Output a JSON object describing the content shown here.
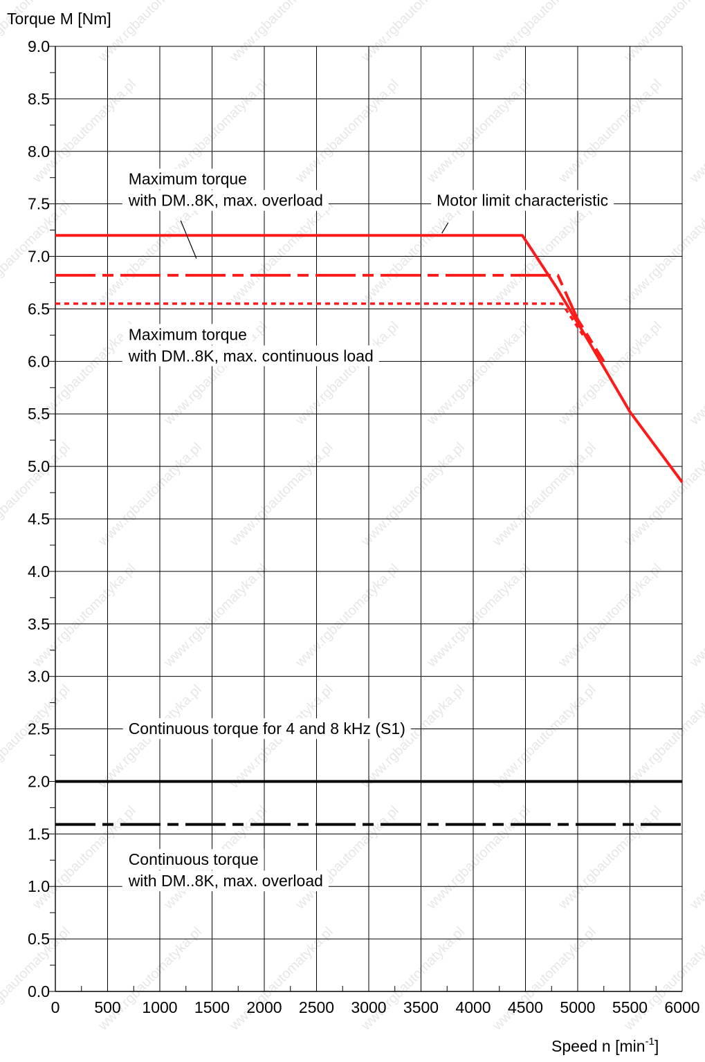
{
  "chart_data": {
    "type": "line",
    "ylabel": "Torque M [Nm]",
    "xlabel": "Speed n [min",
    "xlabel_superscript": "-1",
    "xlabel_suffix": "]",
    "xlim": [
      0,
      6000
    ],
    "ylim": [
      0,
      9.0
    ],
    "x_ticks": [
      "0",
      "500",
      "1000",
      "1500",
      "2000",
      "2500",
      "3000",
      "3500",
      "4000",
      "4500",
      "5000",
      "5500",
      "6000"
    ],
    "y_ticks": [
      "0.0",
      "0.5",
      "1.0",
      "1.5",
      "2.0",
      "2.5",
      "3.0",
      "3.5",
      "4.0",
      "4.5",
      "5.0",
      "5.5",
      "6.0",
      "6.5",
      "7.0",
      "7.5",
      "8.0",
      "8.5",
      "9.0"
    ],
    "grid": true,
    "colors": {
      "red": "#ff1a1a",
      "black": "#000000"
    },
    "series": [
      {
        "name": "Motor limit characteristic",
        "color": "#ff1a1a",
        "style": "solid",
        "x": [
          0,
          4470,
          4800,
          5100,
          5500,
          6000
        ],
        "y": [
          7.2,
          7.2,
          6.7,
          6.2,
          5.52,
          4.85
        ]
      },
      {
        "name": "Maximum torque with DM..8K, max. overload",
        "color": "#ff1a1a",
        "style": "dashdot",
        "x": [
          0,
          4810,
          5000,
          5250
        ],
        "y": [
          6.82,
          6.82,
          6.4,
          6.0
        ]
      },
      {
        "name": "Maximum torque with DM..8K, max. continuous load",
        "color": "#ff1a1a",
        "style": "dotted",
        "x": [
          0,
          4850,
          5050
        ],
        "y": [
          6.55,
          6.55,
          6.25
        ]
      },
      {
        "name": "Continuous torque for 4 and 8 kHz (S1)",
        "color": "#000000",
        "style": "solid",
        "x": [
          0,
          6000
        ],
        "y": [
          2.0,
          2.0
        ]
      },
      {
        "name": "Continuous torque with DM..8K, max. overload",
        "color": "#000000",
        "style": "dashdot",
        "x": [
          0,
          6000
        ],
        "y": [
          1.59,
          1.59
        ]
      }
    ],
    "annotations": [
      {
        "id": "max-overload",
        "lines": [
          "Maximum torque",
          "with DM..8K, max. overload"
        ],
        "x": 700,
        "y": 7.48,
        "tail": [
          [
            1200,
            7.34
          ],
          [
            1350,
            6.98
          ]
        ]
      },
      {
        "id": "motor-limit",
        "lines": [
          "Motor limit characteristic"
        ],
        "x": 3650,
        "y": 7.48,
        "tail": [
          [
            3760,
            7.32
          ],
          [
            3700,
            7.22
          ]
        ]
      },
      {
        "id": "max-continuous",
        "lines": [
          "Maximum torque",
          "with DM..8K, max. continuous load"
        ],
        "x": 700,
        "y": 6.0,
        "tail": []
      },
      {
        "id": "cont-s1",
        "lines": [
          "Continuous torque for 4 and 8 kHz (S1)"
        ],
        "x": 700,
        "y": 2.45,
        "tail": []
      },
      {
        "id": "cont-overload",
        "lines": [
          "Continuous torque",
          "with DM..8K, max. overload"
        ],
        "x": 700,
        "y": 1.0,
        "tail": []
      }
    ],
    "watermark": "www.rgbautomatyka.pl"
  }
}
